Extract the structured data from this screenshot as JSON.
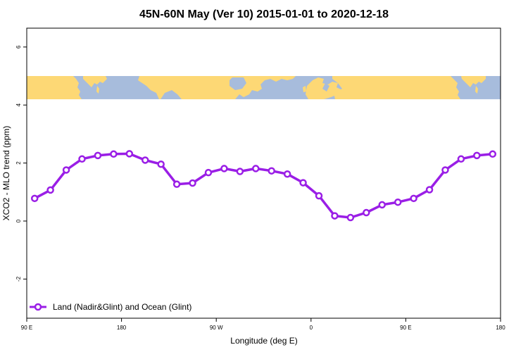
{
  "chart_data": {
    "type": "line",
    "title": "45N-60N May (Ver 10)   2015-01-01 to 2020-12-18",
    "xlabel": "Longitude (deg E)",
    "ylabel": "XCO2 - MLO trend (ppm)",
    "x_ticks": [
      {
        "value": 90,
        "label": "90 E"
      },
      {
        "value": 180,
        "label": "180"
      },
      {
        "value": 270,
        "label": "90 W"
      },
      {
        "value": 360,
        "label": "0"
      },
      {
        "value": 450,
        "label": "90 E"
      },
      {
        "value": 540,
        "label": "180"
      }
    ],
    "y_ticks": [
      {
        "value": -2,
        "label": "-2"
      },
      {
        "value": 0,
        "label": "0"
      },
      {
        "value": 2,
        "label": "2"
      },
      {
        "value": 4,
        "label": "4"
      },
      {
        "value": 6,
        "label": "6"
      }
    ],
    "xlim": [
      90,
      540
    ],
    "ylim": [
      -3.35,
      6.65
    ],
    "map_band": {
      "ymin": 4.2,
      "ymax": 5.0,
      "ocean_color": "#a7bcdc",
      "land_color": "#fdd875"
    },
    "series": [
      {
        "name": "Land (Nadir&Glint) and Ocean (Glint)",
        "color": "#9a1ee6",
        "x": [
          97.5,
          112.5,
          127.5,
          142.5,
          157.5,
          172.5,
          187.5,
          202.5,
          217.5,
          232.5,
          247.5,
          262.5,
          277.5,
          292.5,
          307.5,
          322.5,
          337.5,
          352.5,
          367.5,
          382.5,
          397.5,
          412.5,
          427.5,
          442.5,
          457.5,
          472.5,
          487.5,
          502.5,
          517.5,
          532.5
        ],
        "y": [
          0.78,
          1.07,
          1.76,
          2.14,
          2.26,
          2.31,
          2.32,
          2.1,
          1.96,
          1.27,
          1.31,
          1.67,
          1.81,
          1.71,
          1.81,
          1.73,
          1.62,
          1.32,
          0.87,
          0.18,
          0.12,
          0.29,
          0.56,
          0.65,
          0.78,
          1.08,
          1.76,
          2.14,
          2.26,
          2.31
        ]
      }
    ],
    "legend_position": "bottom-left",
    "grid": false
  }
}
